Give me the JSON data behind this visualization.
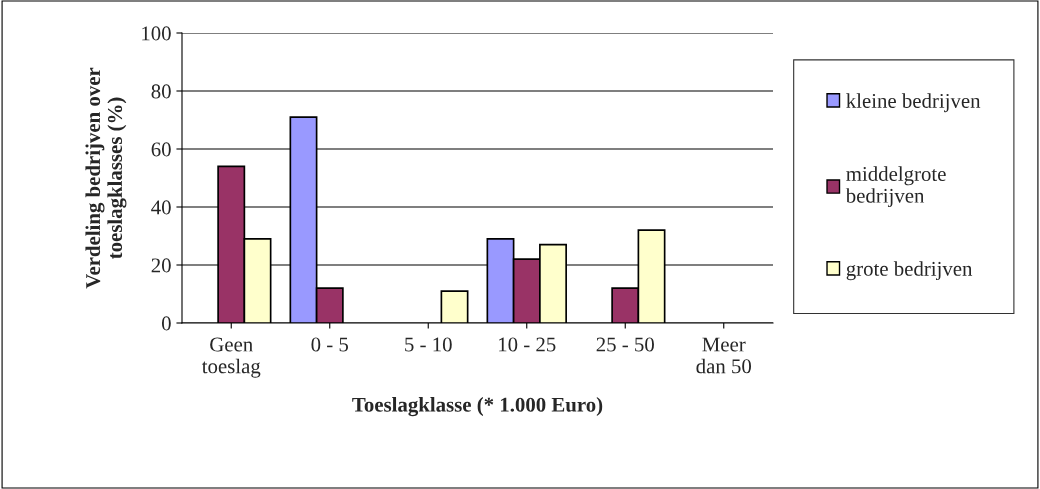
{
  "chart_data": {
    "type": "bar",
    "xlabel": "Toeslagklasse (* 1.000 Euro)",
    "ylabel": "Verdeling bedrijven over\ntoeslagklasses (%)",
    "categories": [
      "Geen\ntoeslag",
      "0 - 5",
      "5 - 10",
      "10 - 25",
      "25 - 50",
      "Meer\ndan 50"
    ],
    "series": [
      {
        "name": "kleine bedrijven",
        "color": "#9999ff",
        "values": [
          null,
          71,
          null,
          29,
          null,
          null
        ]
      },
      {
        "name": "middelgrote\nbedrijven",
        "color": "#993366",
        "values": [
          54,
          12,
          null,
          22,
          12,
          null
        ]
      },
      {
        "name": "grote bedrijven",
        "color": "#ffffcc",
        "values": [
          29,
          null,
          11,
          27,
          32,
          null
        ]
      }
    ],
    "ylim": [
      0,
      100
    ],
    "yticks": [
      0,
      20,
      40,
      60,
      80,
      100
    ],
    "grid": "y",
    "legend": "right"
  }
}
